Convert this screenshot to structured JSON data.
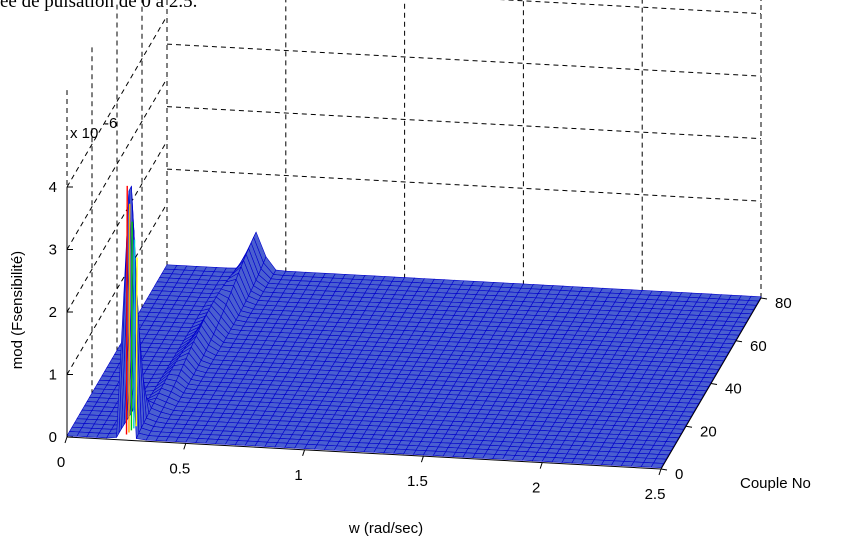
{
  "page": {
    "top_text": "ee de pulsation de 0 a 2.5."
  },
  "chart_data": {
    "type": "surface",
    "xlabel": "w (rad/sec)",
    "ylabel": "Couple No",
    "zlabel": "mod (Fsensibilité)",
    "z_exponent": "x 10",
    "z_exponent_power": "-6",
    "xlim": [
      0,
      2.5
    ],
    "ylim": [
      0,
      80
    ],
    "zlim": [
      0,
      4
    ],
    "x_ticks": [
      "0",
      "0.5",
      "1",
      "1.5",
      "2",
      "2.5"
    ],
    "y_ticks": [
      "0",
      "20",
      "40",
      "60",
      "80"
    ],
    "z_ticks": [
      "0",
      "1",
      "2",
      "3",
      "4"
    ],
    "grid": true,
    "mesh_color": "#0000cc",
    "face_color": "#4a5fd0",
    "peaks": [
      {
        "w": 0.25,
        "couple": 3,
        "value": 4.0
      },
      {
        "w": 0.35,
        "couple": 75,
        "value": 0.6
      }
    ],
    "baseline": 0.02
  }
}
